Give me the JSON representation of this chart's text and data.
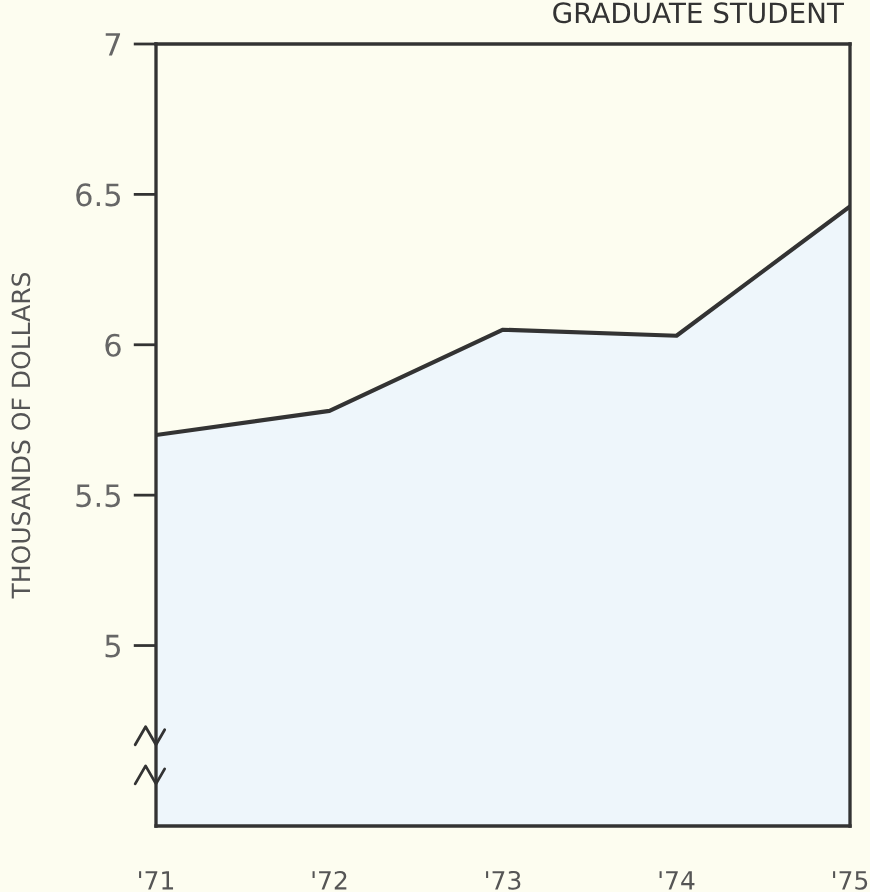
{
  "chart_data": {
    "type": "area",
    "title": "GRADUATE STUDENT",
    "ylabel": "THOUSANDS OF DOLLARS",
    "categories": [
      "'71",
      "'72",
      "'73",
      "'74",
      "'75"
    ],
    "series": [
      {
        "color": "#333333",
        "values": [
          5.7,
          5.78,
          6.05,
          6.03,
          6.46
        ]
      }
    ],
    "ylim": [
      4.4,
      7
    ],
    "yticks": [
      5,
      {
        "value": 5.5,
        "label": "5.5"
      },
      6,
      {
        "value": 6.5,
        "label": "6.5"
      },
      7
    ],
    "grid": false,
    "legend": false
  }
}
